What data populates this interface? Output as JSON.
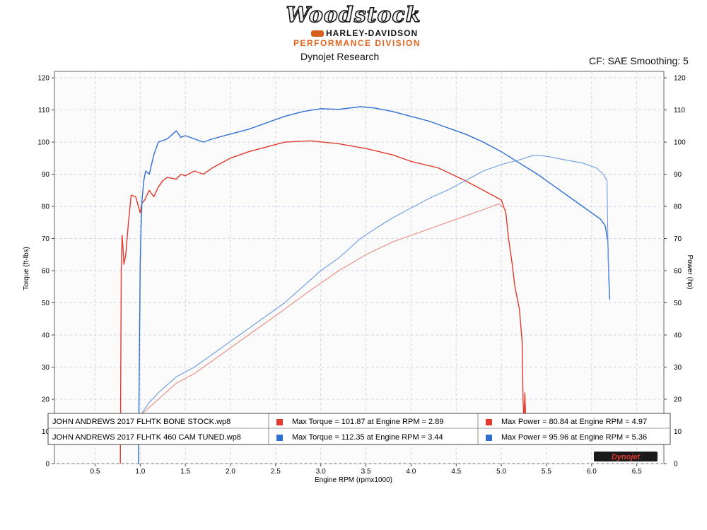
{
  "header": {
    "logo_main": "Woodstock",
    "logo_brand": "HARLEY-DAVIDSON",
    "logo_division": "PERFORMANCE DIVISION",
    "vendor": "Dynojet Research",
    "correction": "CF: SAE Smoothing: 5"
  },
  "colors": {
    "stock": "#e03a2c",
    "tuned": "#2f6fd0",
    "stock_power": "#ea8a7c",
    "tuned_power": "#6a9ae0"
  },
  "footer_logo": "Dynojet",
  "chart_data": {
    "type": "line",
    "xlabel": "Engine RPM (rpmx1000)",
    "ylabel": "Torque (ft-lbs)",
    "y2label": "Power (hp)",
    "xlim": [
      0.05,
      6.8
    ],
    "ylim": [
      0,
      122
    ],
    "y2lim": [
      0,
      122
    ],
    "xticks": [
      "0.5",
      "1.0",
      "1.5",
      "2.0",
      "2.5",
      "3.0",
      "3.5",
      "4.0",
      "4.5",
      "5.0",
      "5.5",
      "6.0",
      "6.5"
    ],
    "yticks": [
      "0",
      "10",
      "20",
      "30",
      "40",
      "50",
      "60",
      "70",
      "80",
      "90",
      "100",
      "110",
      "120"
    ],
    "y2ticks": [
      "0",
      "10",
      "20",
      "30",
      "40",
      "50",
      "60",
      "70",
      "80",
      "90",
      "100",
      "110",
      "120"
    ],
    "grid": true,
    "legend_position": "bottom",
    "legend": {
      "runs": [
        "JOHN ANDREWS 2017 FLHTK BONE STOCK.wp8",
        "JOHN ANDREWS 2017 FLHTK 460 CAM TUNED.wp8"
      ],
      "torque": [
        "Max Torque = 101.87 at Engine RPM = 2.89",
        "Max Torque = 112.35 at Engine RPM = 3.44"
      ],
      "power": [
        "Max Power = 80.84 at Engine RPM = 4.97",
        "Max Power = 95.96 at Engine RPM = 5.36"
      ]
    },
    "series": [
      {
        "kind": "torque",
        "run": 0,
        "color": "#e03a2c",
        "x": [
          0.78,
          0.79,
          0.8,
          0.82,
          0.84,
          0.87,
          0.9,
          0.95,
          1.0,
          1.02,
          1.05,
          1.1,
          1.15,
          1.2,
          1.25,
          1.3,
          1.4,
          1.45,
          1.5,
          1.6,
          1.7,
          1.8,
          2.0,
          2.2,
          2.4,
          2.6,
          2.89,
          3.2,
          3.5,
          3.8,
          4.0,
          4.3,
          4.6,
          4.8,
          5.0,
          5.05,
          5.08,
          5.12,
          5.15,
          5.2,
          5.23,
          5.24,
          5.25,
          5.26,
          5.27,
          5.28
        ],
        "y": [
          0,
          60,
          71,
          62,
          65,
          75,
          83.5,
          83,
          78,
          81,
          82,
          85,
          83,
          86,
          88,
          89,
          88.5,
          90,
          89.5,
          91,
          90,
          92,
          95,
          97,
          98.5,
          100,
          100.4,
          99.5,
          98,
          96,
          94,
          92,
          88,
          85,
          82,
          78,
          70,
          62,
          55,
          48,
          38,
          20,
          12,
          22,
          14,
          9
        ]
      },
      {
        "kind": "torque",
        "run": 1,
        "color": "#2f6fd0",
        "x": [
          0.98,
          0.99,
          1.0,
          1.01,
          1.02,
          1.04,
          1.06,
          1.1,
          1.15,
          1.2,
          1.3,
          1.4,
          1.45,
          1.5,
          1.6,
          1.7,
          1.8,
          2.0,
          2.2,
          2.4,
          2.6,
          2.8,
          3.0,
          3.2,
          3.44,
          3.6,
          3.8,
          4.0,
          4.2,
          4.4,
          4.6,
          4.8,
          5.0,
          5.2,
          5.4,
          5.6,
          5.8,
          6.0,
          6.1,
          6.15,
          6.18,
          6.19,
          6.2
        ],
        "y": [
          0,
          30,
          62,
          74,
          82,
          88,
          91,
          90,
          96,
          100,
          101,
          103.5,
          101.5,
          102,
          101,
          100,
          101,
          102.5,
          104,
          106,
          108,
          109.5,
          110.4,
          110.2,
          111,
          110.6,
          109.5,
          108,
          106.5,
          104.5,
          102.5,
          100,
          97,
          93.5,
          90,
          86,
          82,
          78,
          76,
          74,
          69,
          58,
          51
        ]
      },
      {
        "kind": "power",
        "run": 0,
        "color": "#ea8a7c",
        "x": [
          0.78,
          0.9,
          1.0,
          1.2,
          1.4,
          1.6,
          1.8,
          2.0,
          2.2,
          2.4,
          2.6,
          2.89,
          3.2,
          3.5,
          3.8,
          4.0,
          4.3,
          4.6,
          4.8,
          4.97,
          5.05
        ],
        "y": [
          9,
          13,
          15,
          20,
          25,
          28,
          32,
          36,
          40,
          44,
          48,
          54,
          60,
          65,
          69,
          71,
          74,
          77,
          79,
          80.8,
          79
        ]
      },
      {
        "kind": "power",
        "run": 1,
        "color": "#6a9ae0",
        "x": [
          0.98,
          1.0,
          1.1,
          1.2,
          1.4,
          1.6,
          1.8,
          2.0,
          2.2,
          2.4,
          2.6,
          2.8,
          3.0,
          3.2,
          3.44,
          3.6,
          3.8,
          4.0,
          4.2,
          4.4,
          4.6,
          4.8,
          5.0,
          5.2,
          5.36,
          5.5,
          5.7,
          5.9,
          6.05,
          6.13,
          6.17,
          6.18,
          6.19
        ],
        "y": [
          13,
          15,
          19,
          22,
          27,
          30,
          34,
          38,
          42,
          46,
          50,
          55,
          60,
          64,
          70,
          73,
          76.5,
          79.5,
          82.5,
          85,
          88,
          91,
          93,
          94.5,
          95.9,
          95.6,
          94.5,
          93.5,
          92,
          90,
          88,
          70,
          58
        ]
      }
    ]
  }
}
